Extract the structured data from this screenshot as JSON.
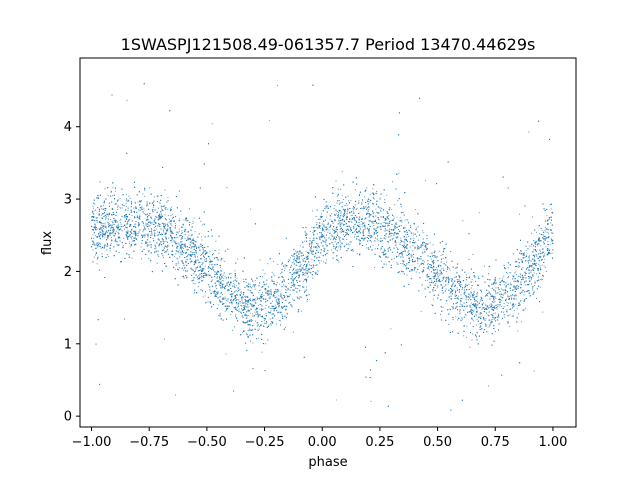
{
  "chart_data": {
    "type": "scatter",
    "title": "1SWASPJ121508.49-061357.7 Period 13470.44629s",
    "xlabel": "phase",
    "ylabel": "flux",
    "xlim": [
      -1.05,
      1.1
    ],
    "ylim": [
      -0.15,
      4.95
    ],
    "xticks": [
      -1.0,
      -0.75,
      -0.5,
      -0.25,
      0.0,
      0.25,
      0.5,
      0.75,
      1.0
    ],
    "xtick_labels": [
      "−1.00",
      "−0.75",
      "−0.50",
      "−0.25",
      "0.00",
      "0.25",
      "0.50",
      "0.75",
      "1.00"
    ],
    "yticks": [
      0,
      1,
      2,
      3,
      4
    ],
    "ytick_labels": [
      "0",
      "1",
      "2",
      "3",
      "4"
    ],
    "grid": false,
    "legend": "none",
    "marker_color": "#1f77b4",
    "trend": {
      "phase": [
        -1.0,
        -0.9,
        -0.8,
        -0.7,
        -0.6,
        -0.5,
        -0.4,
        -0.3,
        -0.2,
        -0.1,
        0.0,
        0.1,
        0.2,
        0.3,
        0.4,
        0.5,
        0.6,
        0.7,
        0.8,
        0.9,
        1.0
      ],
      "flux": [
        2.55,
        2.65,
        2.68,
        2.6,
        2.4,
        2.05,
        1.7,
        1.5,
        1.6,
        2.0,
        2.45,
        2.65,
        2.68,
        2.55,
        2.3,
        1.95,
        1.6,
        1.48,
        1.65,
        2.05,
        2.5
      ]
    },
    "scatter_sd": 0.23,
    "outlier_range": [
      0.0,
      4.7
    ]
  }
}
